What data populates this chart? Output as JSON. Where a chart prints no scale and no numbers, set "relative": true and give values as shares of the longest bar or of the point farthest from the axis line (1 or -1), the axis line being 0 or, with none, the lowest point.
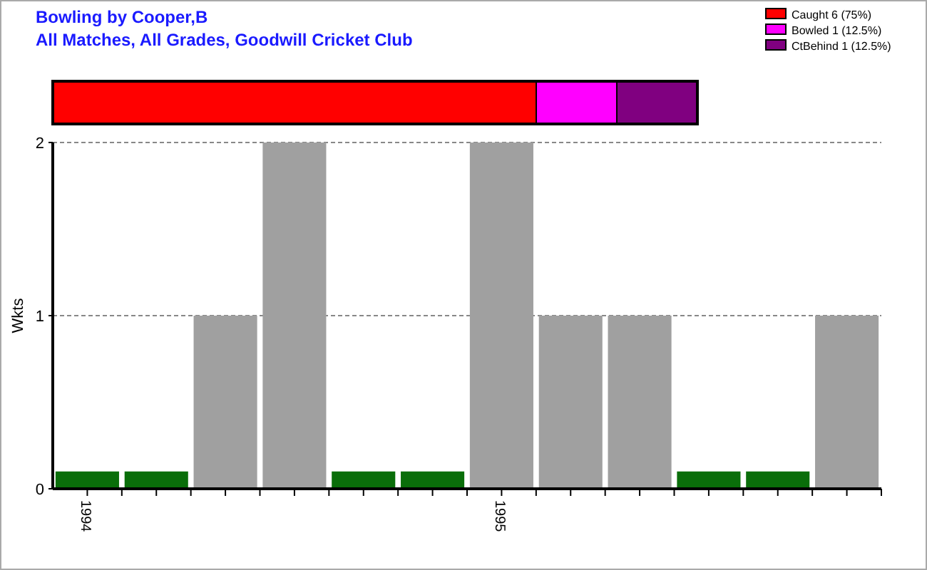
{
  "chart_data": [
    {
      "type": "bar",
      "title": "Bowling by Cooper,B",
      "subtitle": "All Matches, All Grades, Goodwill Cricket Club",
      "orientation": "horizontal",
      "stacked": true,
      "relative": true,
      "categories": [
        null
      ],
      "legend": "top right",
      "series": [
        {
          "name": "Caught 6 (75%)",
          "color": "#ff0000",
          "values": [
            0.75
          ]
        },
        {
          "name": "Bowled 1 (12.5%)",
          "color": "#ff00ff",
          "values": [
            0.125
          ]
        },
        {
          "name": "CtBehind 1 (12.5%)",
          "color": "#800080",
          "values": [
            0.125
          ]
        }
      ]
    },
    {
      "type": "bar",
      "ylabel": "Wkts",
      "categories": [
        "1994",
        null,
        null,
        null,
        null,
        null,
        "1995",
        null,
        null,
        null,
        null,
        null
      ],
      "values": [
        0.1,
        0.1,
        1,
        2,
        0.1,
        0.1,
        2,
        1,
        1,
        0.1,
        0.1,
        1
      ],
      "colors": [
        "#0a6e0a",
        "#0a6e0a",
        "#a0a0a0",
        "#a0a0a0",
        "#0a6e0a",
        "#0a6e0a",
        "#a0a0a0",
        "#a0a0a0",
        "#a0a0a0",
        "#0a6e0a",
        "#0a6e0a",
        "#a0a0a0"
      ],
      "ylim": [
        0,
        2
      ],
      "yticks": [
        0,
        1,
        2
      ],
      "grid": "y"
    }
  ]
}
